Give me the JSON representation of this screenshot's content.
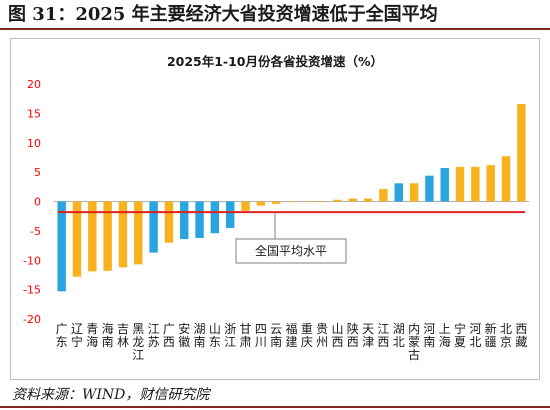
{
  "figure": {
    "title": "图 31：2025 年主要经济大省投资增速低于全国平均",
    "source": "资料来源：WIND，财信研究院"
  },
  "chart_data": {
    "type": "bar",
    "title": "2025年1-10月份各省投资增速（%）",
    "xlabel": "",
    "ylabel": "",
    "ylim": [
      -20,
      20
    ],
    "yticks": [
      -20,
      -15,
      -10,
      -5,
      0,
      5,
      10,
      15,
      20
    ],
    "grid": false,
    "categories": [
      "广东",
      "辽宁",
      "青海",
      "海南",
      "吉林",
      "黑龙江",
      "江苏",
      "广西",
      "安徽",
      "湖南",
      "山东",
      "浙江",
      "甘肃",
      "四川",
      "云南",
      "福建",
      "重庆",
      "贵州",
      "山西",
      "陕西",
      "天津",
      "江西",
      "湖北",
      "内蒙古",
      "河南",
      "上海",
      "宁夏",
      "河北",
      "新疆",
      "北京",
      "西藏"
    ],
    "values": [
      -15.3,
      -12.8,
      -11.9,
      -11.8,
      -11.2,
      -10.7,
      -8.7,
      -7.0,
      -6.4,
      -6.2,
      -5.4,
      -4.5,
      -1.6,
      -0.7,
      -0.4,
      -0.1,
      -0.1,
      -0.1,
      0.3,
      0.5,
      0.5,
      2.1,
      3.1,
      3.1,
      4.4,
      5.7,
      5.9,
      5.9,
      6.2,
      7.7,
      16.6
    ],
    "colors": [
      "#2aa4de",
      "#f7b21e",
      "#f7b21e",
      "#f7b21e",
      "#f7b21e",
      "#f7b21e",
      "#2aa4de",
      "#f7b21e",
      "#2aa4de",
      "#2aa4de",
      "#2aa4de",
      "#2aa4de",
      "#f7b21e",
      "#f7b21e",
      "#f7b21e",
      "#f7b21e",
      "#f7b21e",
      "#f7b21e",
      "#f7b21e",
      "#f7b21e",
      "#f7b21e",
      "#f7b21e",
      "#2aa4de",
      "#f7b21e",
      "#2aa4de",
      "#2aa4de",
      "#f7b21e",
      "#f7b21e",
      "#f7b21e",
      "#f7b21e",
      "#f7b21e"
    ],
    "reference_line": {
      "value": -1.8,
      "label": "全国平均水平",
      "color": "#e02020"
    }
  }
}
